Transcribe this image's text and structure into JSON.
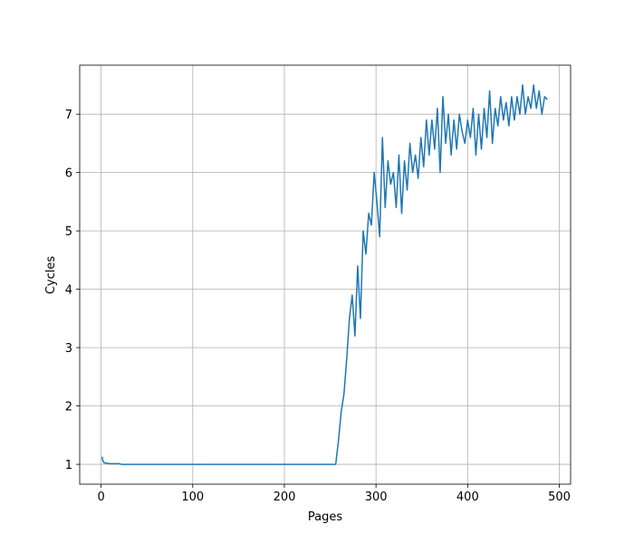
{
  "chart_data": {
    "type": "line",
    "x_label": "Pages",
    "y_label": "Cycles",
    "color": "#1f77b4",
    "grid": true,
    "xlim": [
      -23.35,
      512.35
    ],
    "ylim": [
      0.66,
      7.84
    ],
    "xticks": [
      0,
      100,
      200,
      300,
      400,
      500
    ],
    "yticks": [
      1,
      2,
      3,
      4,
      5,
      6,
      7
    ],
    "x": [
      1,
      2,
      3,
      5,
      10,
      20,
      22,
      255,
      256,
      259,
      262,
      265,
      268,
      271,
      274,
      277,
      280,
      283,
      286,
      289,
      292,
      295,
      298,
      301,
      304,
      307,
      310,
      313,
      316,
      319,
      322,
      325,
      328,
      331,
      334,
      337,
      340,
      343,
      346,
      349,
      352,
      355,
      358,
      361,
      364,
      367,
      370,
      373,
      376,
      379,
      382,
      385,
      388,
      391,
      394,
      397,
      400,
      403,
      406,
      409,
      412,
      415,
      418,
      421,
      424,
      427,
      430,
      433,
      436,
      439,
      442,
      445,
      448,
      451,
      454,
      457,
      460,
      463,
      466,
      469,
      472,
      475,
      478,
      481,
      484,
      487
    ],
    "values": [
      1.13,
      1.06,
      1.03,
      1.02,
      1.01,
      1.01,
      1.0,
      1.0,
      1.0,
      1.4,
      1.9,
      2.2,
      2.8,
      3.5,
      3.9,
      3.2,
      4.4,
      3.5,
      5.0,
      4.6,
      5.3,
      5.1,
      6.0,
      5.5,
      4.9,
      6.6,
      5.4,
      6.2,
      5.8,
      6.0,
      5.4,
      6.3,
      5.3,
      6.2,
      5.7,
      6.5,
      6.0,
      6.3,
      5.9,
      6.6,
      6.1,
      6.9,
      6.3,
      6.9,
      6.4,
      7.1,
      6.0,
      7.3,
      6.5,
      7.0,
      6.3,
      6.9,
      6.4,
      7.0,
      6.7,
      6.5,
      6.9,
      6.6,
      7.1,
      6.3,
      7.0,
      6.4,
      7.1,
      6.6,
      7.4,
      6.5,
      7.1,
      6.8,
      7.3,
      6.9,
      7.2,
      6.8,
      7.3,
      6.9,
      7.3,
      7.0,
      7.5,
      7.0,
      7.3,
      7.1,
      7.5,
      7.1,
      7.4,
      7.0,
      7.3,
      7.25
    ]
  }
}
